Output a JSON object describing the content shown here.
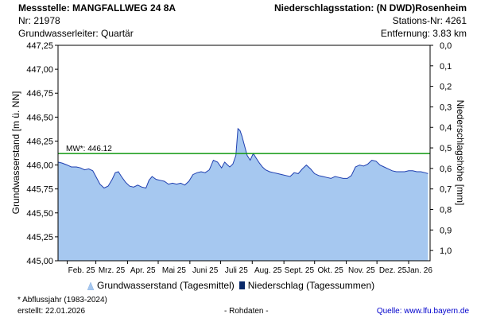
{
  "header": {
    "station_title": "Messstelle: MANGFALLWEG 24 8A",
    "station_nr": "Nr: 21978",
    "aquifer": "Grundwasserleiter: Quartär",
    "precip_title": "Niederschlagsstation: (N DWD)Rosenheim",
    "precip_nr": "Stations-Nr: 4261",
    "distance": "Entfernung: 3.83 km"
  },
  "legend": {
    "groundwater": "Grundwasserstand (Tagesmittel)",
    "precipitation": "Niederschlag (Tagessummen)"
  },
  "footer": {
    "footnote": "* Abflussjahr (1983-2024)",
    "created": "erstellt:  22.01.2026",
    "raw": "- Rohdaten -",
    "source": "Quelle:  www.lfu.bayern.de"
  },
  "colors": {
    "area_fill": "#a6c8f0",
    "area_line": "#1f3fb0",
    "mean_line": "#119911",
    "precip_bar": "#0a2a6a"
  },
  "chart_data": {
    "type": "area",
    "ylabel": "Grundwasserstand [m ü. NN]",
    "y2label": "Niederschlagshöhe [mm]",
    "ylim": [
      445.0,
      447.25
    ],
    "yticks": [
      445.0,
      445.25,
      445.5,
      445.75,
      446.0,
      446.25,
      446.5,
      446.75,
      447.0,
      447.25
    ],
    "yticklabels": [
      "445,00",
      "445,25",
      "445,50",
      "445,75",
      "446,00",
      "446,25",
      "446,50",
      "446,75",
      "447,00",
      "447,25"
    ],
    "y2lim": [
      0.0,
      1.05
    ],
    "y2ticks": [
      0.0,
      0.1,
      0.2,
      0.3,
      0.4,
      0.5,
      0.6,
      0.7,
      0.8,
      0.9,
      1.0
    ],
    "y2ticklabels": [
      "0,0",
      "0,1",
      "0,2",
      "0,3",
      "0,4",
      "0,5",
      "0,6",
      "0,7",
      "0,8",
      "0,9",
      "1,0"
    ],
    "xlim": [
      "2025-01-23",
      "2026-01-22"
    ],
    "xticks": [
      "2025-02-01",
      "2025-03-01",
      "2025-04-01",
      "2025-05-01",
      "2025-06-01",
      "2025-07-01",
      "2025-08-01",
      "2025-09-01",
      "2025-10-01",
      "2025-11-01",
      "2025-12-01",
      "2026-01-01"
    ],
    "xticklabels": [
      "Feb. 25",
      "Mrz. 25",
      "Apr. 25",
      "Mai 25",
      "Juni 25",
      "Juli 25",
      "Aug. 25",
      "Sept. 25",
      "Okt. 25",
      "Nov. 25",
      "Dez. 25",
      "Jan. 26"
    ],
    "mean_value": 446.12,
    "mean_label": "MW*: 446.12",
    "series": [
      {
        "name": "Grundwasserstand (Tagesmittel)",
        "x": [
          "2025-01-23",
          "2025-01-27",
          "2025-02-01",
          "2025-02-05",
          "2025-02-10",
          "2025-02-14",
          "2025-02-18",
          "2025-02-22",
          "2025-02-26",
          "2025-03-01",
          "2025-03-05",
          "2025-03-09",
          "2025-03-13",
          "2025-03-17",
          "2025-03-20",
          "2025-03-23",
          "2025-03-26",
          "2025-03-30",
          "2025-04-03",
          "2025-04-07",
          "2025-04-11",
          "2025-04-15",
          "2025-04-19",
          "2025-04-22",
          "2025-04-25",
          "2025-04-29",
          "2025-05-03",
          "2025-05-07",
          "2025-05-11",
          "2025-05-15",
          "2025-05-19",
          "2025-05-23",
          "2025-05-27",
          "2025-05-31",
          "2025-06-04",
          "2025-06-08",
          "2025-06-12",
          "2025-06-16",
          "2025-06-20",
          "2025-06-24",
          "2025-06-28",
          "2025-07-02",
          "2025-07-05",
          "2025-07-08",
          "2025-07-10",
          "2025-07-13",
          "2025-07-16",
          "2025-07-18",
          "2025-07-20",
          "2025-07-22",
          "2025-07-24",
          "2025-07-27",
          "2025-07-30",
          "2025-08-02",
          "2025-08-05",
          "2025-08-08",
          "2025-08-11",
          "2025-08-14",
          "2025-08-18",
          "2025-08-22",
          "2025-08-26",
          "2025-08-30",
          "2025-09-03",
          "2025-09-07",
          "2025-09-11",
          "2025-09-15",
          "2025-09-19",
          "2025-09-23",
          "2025-09-27",
          "2025-10-01",
          "2025-10-05",
          "2025-10-09",
          "2025-10-13",
          "2025-10-17",
          "2025-10-21",
          "2025-10-25",
          "2025-10-29",
          "2025-11-02",
          "2025-11-06",
          "2025-11-10",
          "2025-11-14",
          "2025-11-18",
          "2025-11-22",
          "2025-11-26",
          "2025-11-30",
          "2025-12-04",
          "2025-12-08",
          "2025-12-12",
          "2025-12-16",
          "2025-12-20",
          "2025-12-24",
          "2025-12-28",
          "2026-01-01",
          "2026-01-05",
          "2026-01-09",
          "2026-01-13",
          "2026-01-17",
          "2026-01-20"
        ],
        "y": [
          446.03,
          446.02,
          446.0,
          445.98,
          445.98,
          445.97,
          445.95,
          445.96,
          445.94,
          445.88,
          445.8,
          445.76,
          445.78,
          445.85,
          445.92,
          445.93,
          445.88,
          445.82,
          445.78,
          445.77,
          445.79,
          445.77,
          445.76,
          445.84,
          445.88,
          445.85,
          445.84,
          445.83,
          445.8,
          445.81,
          445.8,
          445.81,
          445.79,
          445.83,
          445.9,
          445.92,
          445.93,
          445.92,
          445.95,
          446.05,
          446.03,
          445.97,
          446.03,
          446.0,
          445.98,
          446.01,
          446.1,
          446.38,
          446.36,
          446.3,
          446.22,
          446.1,
          446.05,
          446.12,
          446.07,
          446.02,
          445.98,
          445.95,
          445.93,
          445.92,
          445.91,
          445.9,
          445.89,
          445.88,
          445.92,
          445.91,
          445.96,
          446.0,
          445.96,
          445.91,
          445.89,
          445.88,
          445.87,
          445.86,
          445.88,
          445.87,
          445.86,
          445.86,
          445.89,
          445.98,
          446.0,
          445.99,
          446.01,
          446.05,
          446.04,
          446.0,
          445.98,
          445.96,
          445.94,
          445.93,
          445.93,
          445.93,
          445.94,
          445.94,
          445.93,
          445.93,
          445.92,
          445.91
        ]
      },
      {
        "name": "Niederschlag (Tagessummen)",
        "x": [],
        "values": []
      }
    ]
  }
}
